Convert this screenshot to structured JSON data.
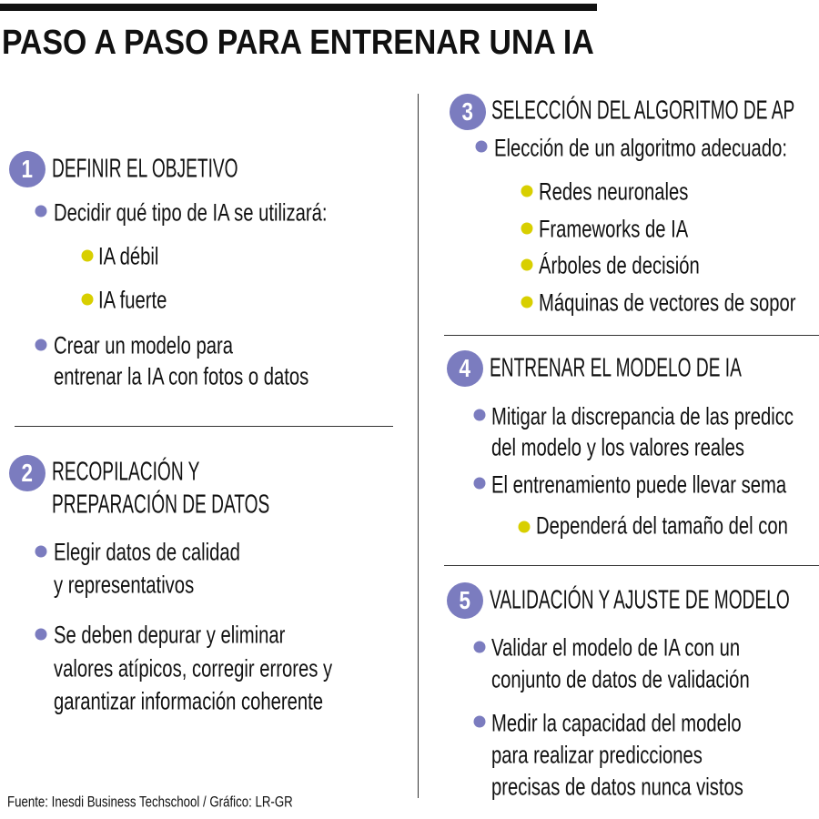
{
  "title": "PASO A PASO PARA ENTRENAR UNA IA",
  "colors": {
    "step_circle": "#7b7cbf",
    "bullet_primary": "#7b7cbf",
    "bullet_secondary": "#d8cf00"
  },
  "steps": [
    {
      "number": "1",
      "title_lines": [
        "DEFINIR EL OBJETIVO"
      ],
      "bullets": [
        {
          "lines": [
            "Decidir qué tipo de IA se utilizará:"
          ],
          "sub": [
            "IA débil",
            "IA fuerte"
          ]
        },
        {
          "lines": [
            "Crear un modelo para",
            "entrenar la IA con fotos o datos"
          ]
        }
      ]
    },
    {
      "number": "2",
      "title_lines": [
        "RECOPILACIÓN Y",
        "PREPARACIÓN DE DATOS"
      ],
      "bullets": [
        {
          "lines": [
            "Elegir datos de calidad",
            "y representativos"
          ]
        },
        {
          "lines": [
            "Se deben depurar y eliminar",
            "valores atípicos, corregir errores y",
            "garantizar información coherente"
          ]
        }
      ]
    },
    {
      "number": "3",
      "title_lines": [
        "SELECCIÓN DEL ALGORITMO DE AP"
      ],
      "bullets": [
        {
          "lines": [
            "Elección de un algoritmo adecuado:"
          ],
          "sub": [
            "Redes neuronales",
            "Frameworks de IA",
            "Árboles de decisión",
            "Máquinas de vectores de sopor"
          ]
        }
      ]
    },
    {
      "number": "4",
      "title_lines": [
        "ENTRENAR EL MODELO DE IA"
      ],
      "bullets": [
        {
          "lines": [
            "Mitigar la discrepancia de las predicc",
            "del modelo y los valores reales"
          ]
        },
        {
          "lines": [
            "El entrenamiento puede llevar sema"
          ],
          "sub": [
            "Dependerá del tamaño del con"
          ]
        }
      ]
    },
    {
      "number": "5",
      "title_lines": [
        "VALIDACIÓN Y AJUSTE DE MODELO"
      ],
      "bullets": [
        {
          "lines": [
            "Validar el modelo de IA con un",
            "conjunto de datos de validación"
          ]
        },
        {
          "lines": [
            "Medir la capacidad del modelo",
            "para realizar predicciones",
            "precisas de datos nunca vistos"
          ]
        }
      ]
    }
  ],
  "source": "Fuente: Inesdi Business Techschool / Gráfico: LR-GR"
}
